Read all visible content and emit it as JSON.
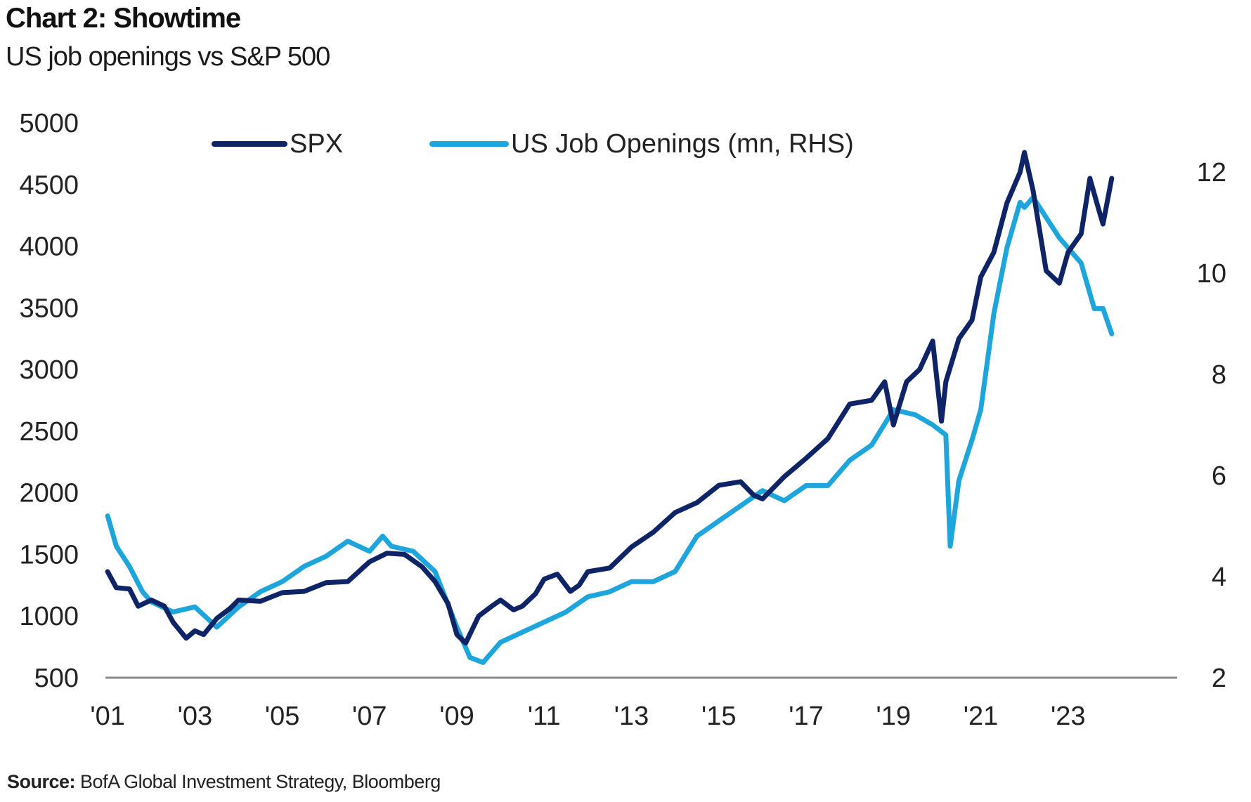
{
  "header": {
    "title": "Chart 2: Showtime",
    "subtitle": "US job openings vs S&P 500"
  },
  "footer": {
    "source_label": "Source:",
    "source_text": "BofA Global Investment Strategy, Bloomberg"
  },
  "colors": {
    "spx": "#0f2466",
    "jobs": "#1ea6dc",
    "axis": "#8a8a8a"
  },
  "chart_data": {
    "type": "line",
    "title": "Chart 2: Showtime",
    "subtitle": "US job openings vs S&P 500",
    "x_ticks": [
      {
        "label": "'01",
        "value": 2001
      },
      {
        "label": "'03",
        "value": 2003
      },
      {
        "label": "'05",
        "value": 2005
      },
      {
        "label": "'07",
        "value": 2007
      },
      {
        "label": "'09",
        "value": 2009
      },
      {
        "label": "'11",
        "value": 2011
      },
      {
        "label": "'13",
        "value": 2013
      },
      {
        "label": "'15",
        "value": 2015
      },
      {
        "label": "'17",
        "value": 2017
      },
      {
        "label": "'19",
        "value": 2019
      },
      {
        "label": "'21",
        "value": 2021
      },
      {
        "label": "'23",
        "value": 2023
      }
    ],
    "xlim": [
      2000.95,
      2025.5
    ],
    "y_left": {
      "ticks": [
        500,
        1000,
        1500,
        2000,
        2500,
        3000,
        3500,
        4000,
        4500,
        5000
      ],
      "ylim": [
        500,
        5000
      ]
    },
    "y_right": {
      "ticks": [
        2,
        4,
        6,
        8,
        10,
        12
      ],
      "ylim": [
        2,
        13
      ]
    },
    "legend": {
      "position": "top-left"
    },
    "series": [
      {
        "name": "SPX",
        "axis": "left",
        "x": [
          2001.0,
          2001.2,
          2001.5,
          2001.7,
          2002.0,
          2002.3,
          2002.5,
          2002.8,
          2003.0,
          2003.2,
          2003.5,
          2003.8,
          2004.0,
          2004.5,
          2005.0,
          2005.5,
          2006.0,
          2006.5,
          2007.0,
          2007.4,
          2007.8,
          2008.2,
          2008.5,
          2008.8,
          2009.0,
          2009.2,
          2009.5,
          2009.8,
          2010.0,
          2010.3,
          2010.5,
          2010.8,
          2011.0,
          2011.3,
          2011.6,
          2011.8,
          2012.0,
          2012.5,
          2013.0,
          2013.5,
          2014.0,
          2014.5,
          2015.0,
          2015.5,
          2015.8,
          2016.0,
          2016.5,
          2017.0,
          2017.5,
          2018.0,
          2018.5,
          2018.8,
          2019.0,
          2019.3,
          2019.6,
          2019.9,
          2020.1,
          2020.2,
          2020.5,
          2020.8,
          2021.0,
          2021.3,
          2021.6,
          2021.9,
          2022.0,
          2022.2,
          2022.5,
          2022.8,
          2023.0,
          2023.3,
          2023.5,
          2023.7,
          2023.8,
          2024.0
        ],
        "values": [
          1360,
          1230,
          1220,
          1080,
          1130,
          1080,
          950,
          820,
          880,
          850,
          980,
          1060,
          1130,
          1120,
          1190,
          1200,
          1270,
          1280,
          1440,
          1510,
          1500,
          1400,
          1280,
          1100,
          850,
          780,
          1000,
          1080,
          1130,
          1050,
          1080,
          1180,
          1300,
          1340,
          1200,
          1250,
          1360,
          1390,
          1560,
          1680,
          1840,
          1920,
          2060,
          2090,
          1980,
          1950,
          2130,
          2280,
          2440,
          2720,
          2750,
          2900,
          2550,
          2900,
          3000,
          3230,
          2580,
          2900,
          3250,
          3400,
          3750,
          3950,
          4350,
          4600,
          4760,
          4450,
          3800,
          3700,
          3950,
          4100,
          4550,
          4300,
          4180,
          4550
        ]
      },
      {
        "name": "US Job Openings (mn, RHS)",
        "axis": "right",
        "x": [
          2001.0,
          2001.2,
          2001.5,
          2001.8,
          2002.0,
          2002.5,
          2003.0,
          2003.5,
          2004.0,
          2004.5,
          2005.0,
          2005.5,
          2006.0,
          2006.5,
          2007.0,
          2007.3,
          2007.5,
          2008.0,
          2008.5,
          2009.0,
          2009.3,
          2009.6,
          2009.8,
          2010.0,
          2010.5,
          2011.0,
          2011.5,
          2012.0,
          2012.5,
          2013.0,
          2013.5,
          2014.0,
          2014.5,
          2015.0,
          2015.5,
          2016.0,
          2016.5,
          2017.0,
          2017.5,
          2018.0,
          2018.5,
          2019.0,
          2019.5,
          2019.9,
          2020.2,
          2020.3,
          2020.5,
          2020.8,
          2021.0,
          2021.3,
          2021.6,
          2021.9,
          2022.0,
          2022.2,
          2022.5,
          2022.8,
          2023.0,
          2023.3,
          2023.6,
          2023.8,
          2024.0
        ],
        "values": [
          5.2,
          4.6,
          4.2,
          3.7,
          3.5,
          3.3,
          3.4,
          3.0,
          3.4,
          3.7,
          3.9,
          4.2,
          4.4,
          4.7,
          4.5,
          4.8,
          4.6,
          4.5,
          4.1,
          3.0,
          2.4,
          2.3,
          2.5,
          2.7,
          2.9,
          3.1,
          3.3,
          3.6,
          3.7,
          3.9,
          3.9,
          4.1,
          4.8,
          5.1,
          5.4,
          5.7,
          5.5,
          5.8,
          5.8,
          6.3,
          6.6,
          7.3,
          7.2,
          7.0,
          6.8,
          4.6,
          5.9,
          6.7,
          7.3,
          9.2,
          10.5,
          11.4,
          11.3,
          11.5,
          11.1,
          10.7,
          10.5,
          10.2,
          9.3,
          9.3,
          8.8
        ]
      }
    ]
  }
}
